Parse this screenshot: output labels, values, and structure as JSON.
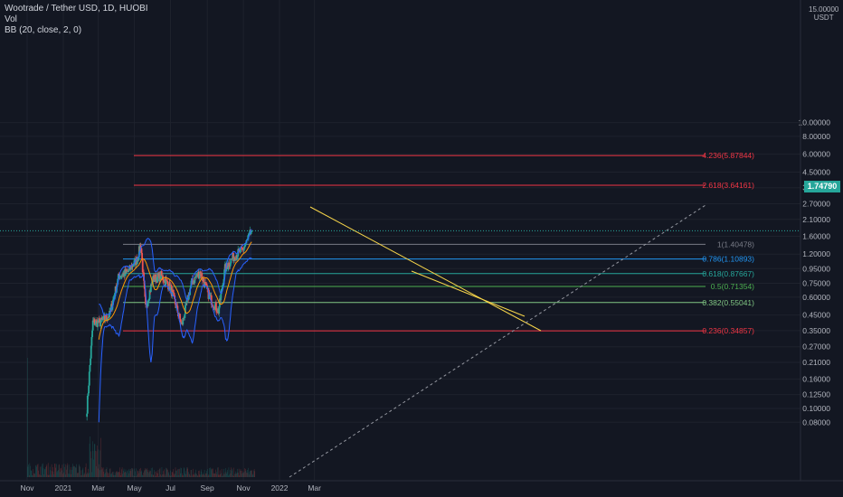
{
  "legend": {
    "title": "Wootrade / Tether USD, 1D, HUOBI",
    "vol": "Vol",
    "bb": "BB (20, close, 2, 0)"
  },
  "price_scale": {
    "currency_top": "15.00000",
    "currency_unit": "USDT",
    "ticks": [
      "10.00000",
      "8.00000",
      "6.00000",
      "4.50000",
      "3.50000",
      "2.70000",
      "2.10000",
      "1.60000",
      "1.20000",
      "0.95000",
      "0.75000",
      "0.60000",
      "0.45000",
      "0.35000",
      "0.27000",
      "0.21000",
      "0.16000",
      "0.12500",
      "0.10000",
      "0.08000"
    ],
    "current_price": "1.74790"
  },
  "time_axis": {
    "labels": [
      "Nov",
      "2021",
      "Mar",
      "May",
      "Jul",
      "Sep",
      "Nov",
      "2022",
      "Mar"
    ]
  },
  "fib_levels": [
    {
      "label": "4.236(5.87844)",
      "value": 5.87844,
      "color": "#f23645"
    },
    {
      "label": "2.618(3.64161)",
      "value": 3.64161,
      "color": "#f23645"
    },
    {
      "label": "1(1.40478)",
      "value": 1.40478,
      "color": "#787b86"
    },
    {
      "label": "0.786(1.10893)",
      "value": 1.10893,
      "color": "#2196f3"
    },
    {
      "label": "0.618(0.87667)",
      "value": 0.87667,
      "color": "#26a69a"
    },
    {
      "label": "0.5(0.71354)",
      "value": 0.71354,
      "color": "#4caf50"
    },
    {
      "label": "0.382(0.55041)",
      "value": 0.55041,
      "color": "#81c784"
    },
    {
      "label": "0.236(0.34857)",
      "value": 0.34857,
      "color": "#f23645"
    }
  ],
  "colors": {
    "background": "#131722",
    "up": "#26a69a",
    "down": "#ef5350",
    "bb_band": "#2962ff",
    "bb_basis": "#ff9800",
    "trend": "#f7d54a",
    "current": "#26a69a"
  },
  "chart_data": {
    "type": "candlestick",
    "title": "Wootrade / Tether USD, 1D, HUOBI",
    "scale": "log",
    "ylim": [
      0.075,
      15.0
    ],
    "close_series": {
      "name": "WOO/USDT",
      "dates": [
        "2021-02-10",
        "2021-02-20",
        "2021-03-05",
        "2021-03-20",
        "2021-04-05",
        "2021-04-20",
        "2021-05-05",
        "2021-05-12",
        "2021-05-20",
        "2021-06-01",
        "2021-06-15",
        "2021-07-01",
        "2021-07-20",
        "2021-08-05",
        "2021-08-20",
        "2021-09-05",
        "2021-09-20",
        "2021-10-01",
        "2021-10-15",
        "2021-11-01",
        "2021-11-15"
      ],
      "values": [
        0.1,
        0.4,
        0.4,
        0.45,
        0.85,
        0.9,
        1.1,
        1.4,
        0.5,
        0.8,
        0.85,
        0.7,
        0.38,
        0.75,
        0.9,
        0.6,
        0.48,
        0.95,
        1.15,
        1.3,
        1.75
      ]
    },
    "current_price": 1.7479
  }
}
